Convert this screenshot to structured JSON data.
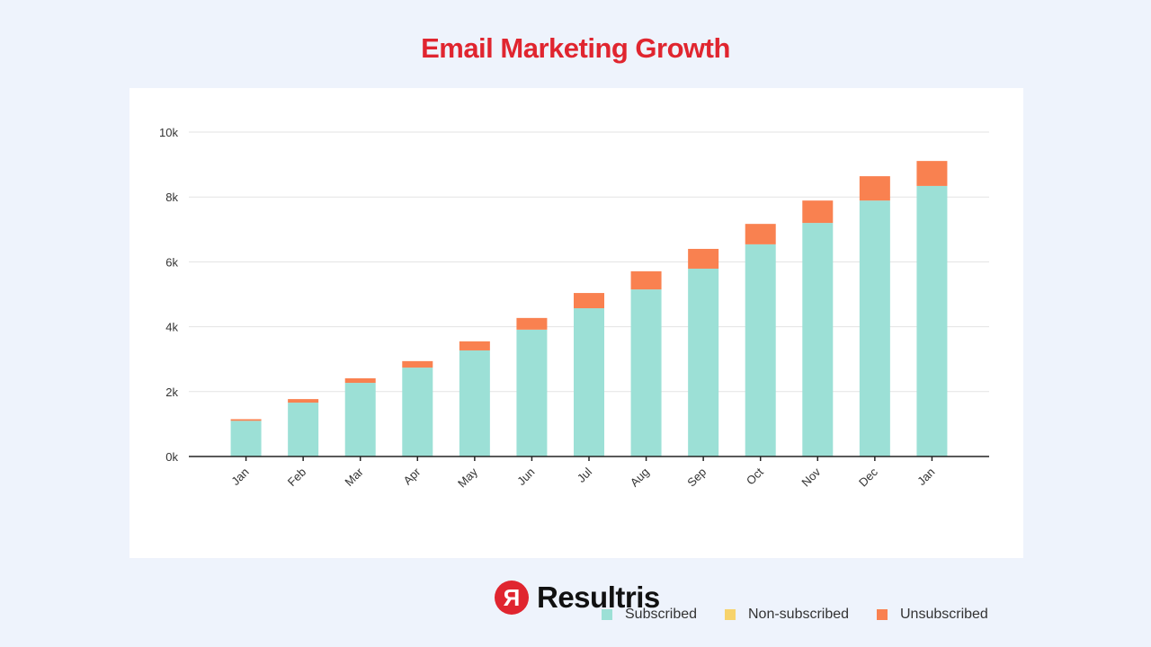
{
  "chart_data": {
    "type": "bar",
    "stacked": true,
    "title": "Email Marketing Growth",
    "xlabel": "",
    "ylabel": "",
    "categories": [
      "Jan",
      "Feb",
      "Mar",
      "Apr",
      "May",
      "Jun",
      "Jul",
      "Aug",
      "Sep",
      "Oct",
      "Nov",
      "Dec",
      "Jan"
    ],
    "series": [
      {
        "name": "Subscribed",
        "color": "#9ce0d6",
        "values": [
          1100,
          1660,
          2270,
          2740,
          3270,
          3910,
          4570,
          5150,
          5790,
          6540,
          7200,
          7890,
          8340
        ]
      },
      {
        "name": "Non-subscribed",
        "color": "#f7d36b",
        "values": [
          0,
          0,
          0,
          0,
          0,
          0,
          0,
          0,
          0,
          0,
          0,
          0,
          0
        ]
      },
      {
        "name": "Unsubscribed",
        "color": "#f98150",
        "values": [
          50,
          110,
          140,
          200,
          280,
          360,
          470,
          560,
          610,
          630,
          690,
          750,
          770
        ]
      }
    ],
    "ylim": [
      0,
      10000
    ],
    "yticks": [
      0,
      2000,
      4000,
      6000,
      8000,
      10000
    ],
    "ytick_labels": [
      "0k",
      "2k",
      "4k",
      "6k",
      "8k",
      "10k"
    ],
    "grid": true,
    "legend_position": "bottom-right"
  },
  "logo": {
    "mark": "Я",
    "text": "Resultris"
  }
}
